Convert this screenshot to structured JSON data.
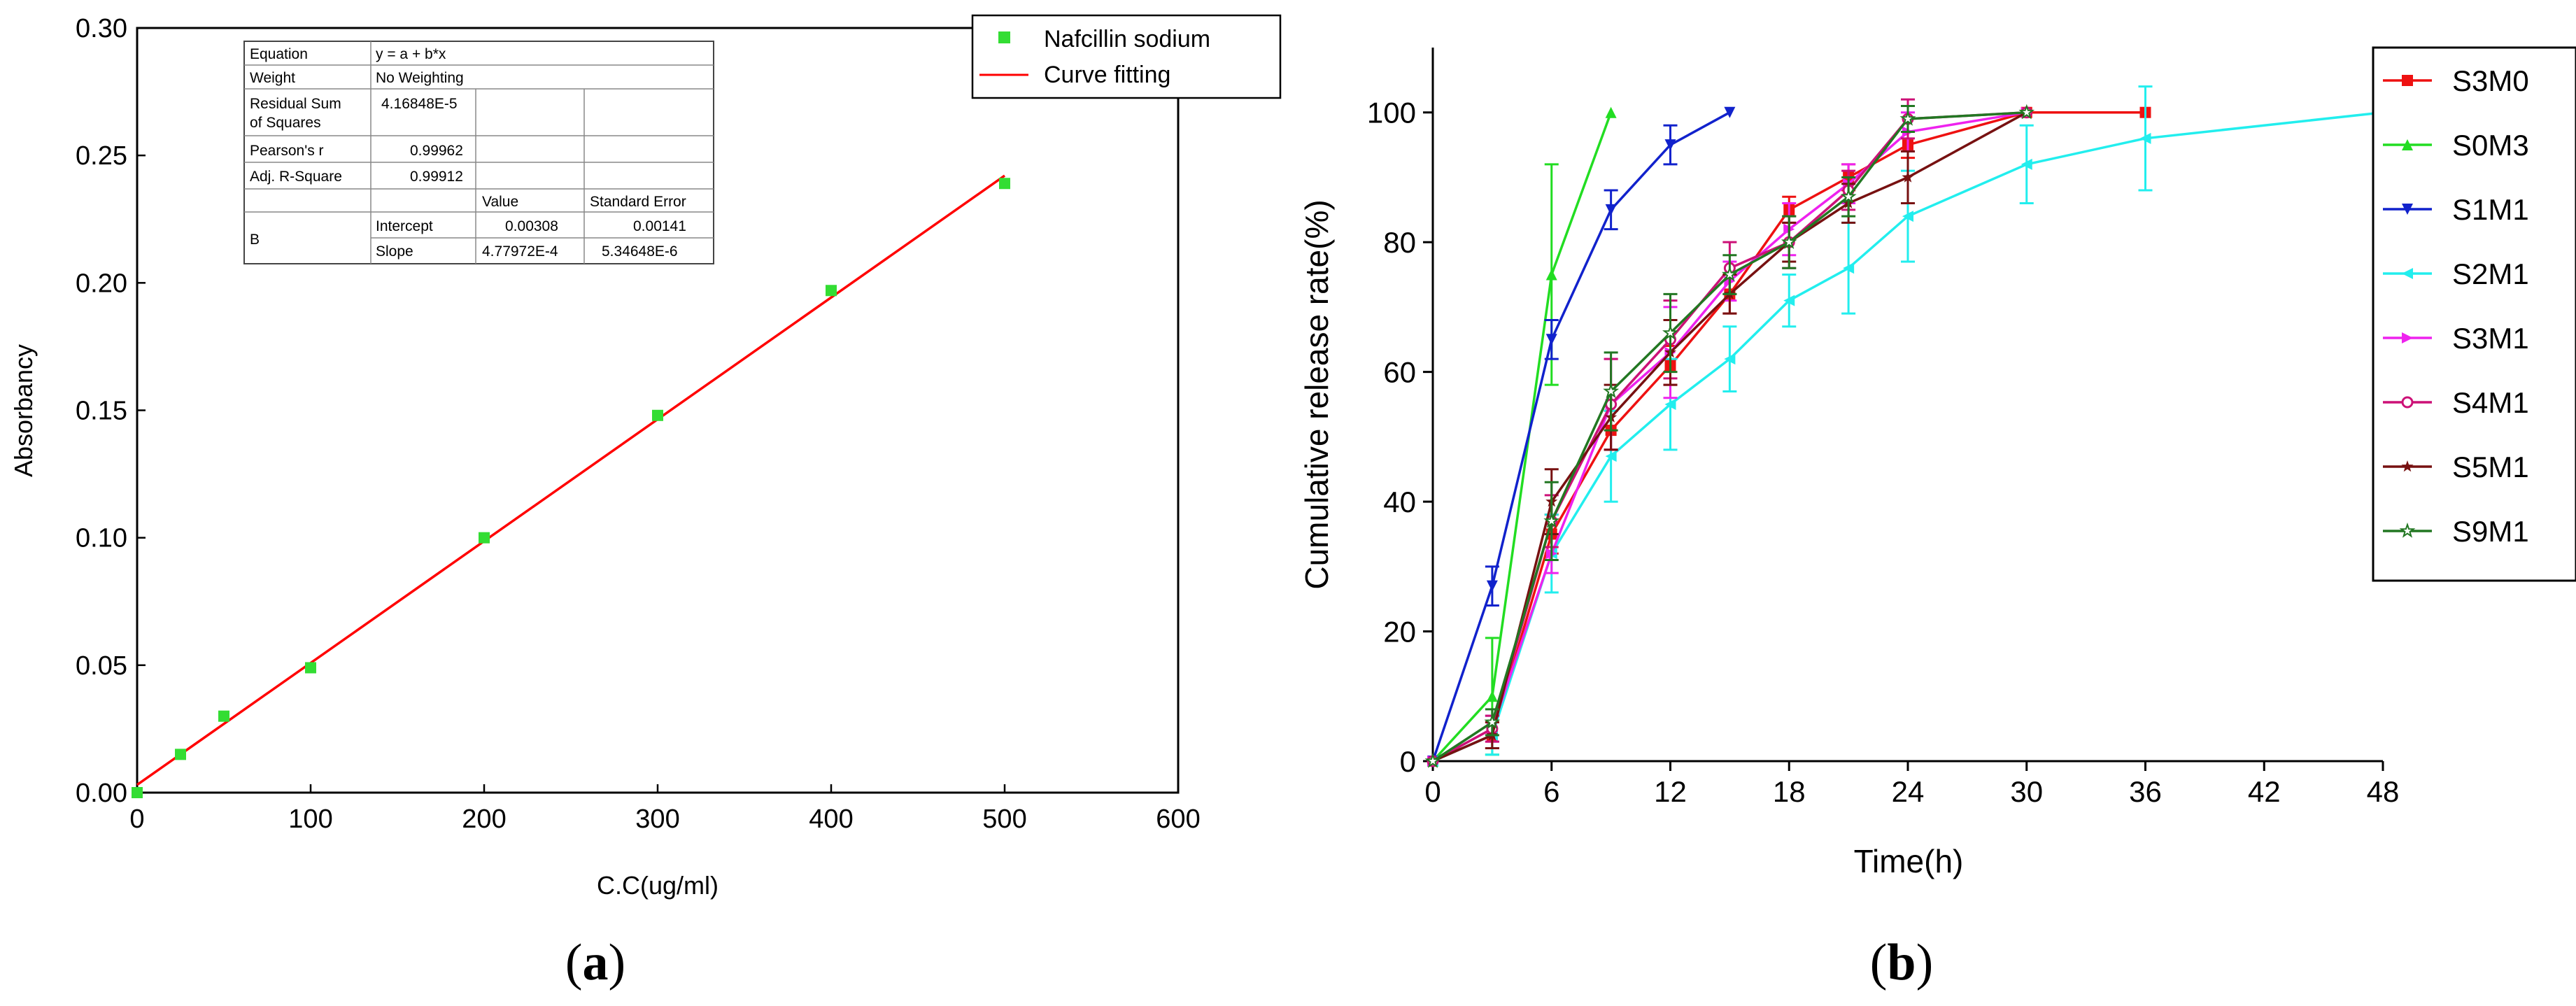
{
  "chart_data": [
    {
      "panel": "(a)",
      "type": "scatter",
      "xlabel": "C.C(ug/ml)",
      "ylabel": "Absorbancy",
      "xlim": [
        0,
        600
      ],
      "ylim": [
        0,
        0.3
      ],
      "xticks": [
        "0",
        "100",
        "200",
        "300",
        "400",
        "500",
        "600"
      ],
      "yticks": [
        "0.00",
        "0.05",
        "0.10",
        "0.15",
        "0.20",
        "0.25",
        "0.30"
      ],
      "series": [
        {
          "name": "Nafcillin sodium",
          "kind": "points",
          "color": "#33dd33",
          "x": [
            0,
            25,
            50,
            100,
            200,
            300,
            400,
            500
          ],
          "y": [
            0.0,
            0.015,
            0.03,
            0.049,
            0.1,
            0.148,
            0.197,
            0.239
          ]
        },
        {
          "name": "Curve fitting",
          "kind": "line",
          "color": "#ff0000",
          "intercept": 0.00308,
          "slope": 0.000477972,
          "x_range": [
            0,
            500
          ]
        }
      ],
      "legend": {
        "position": "top-right",
        "items": [
          "Nafcillin sodium",
          "Curve fitting"
        ]
      },
      "stats_table": [
        [
          "Equation",
          "y = a + b*x",
          "",
          ""
        ],
        [
          "Weight",
          "No Weighting",
          "",
          ""
        ],
        [
          "Residual Sum of Squares",
          "4.16848E-5",
          "",
          ""
        ],
        [
          "Pearson's r",
          "0.99962",
          "",
          ""
        ],
        [
          "Adj. R-Square",
          "0.99912",
          "",
          ""
        ],
        [
          "",
          "",
          "Value",
          "Standard Error"
        ],
        [
          "B",
          "Intercept",
          "0.00308",
          "0.00141"
        ],
        [
          "B",
          "Slope",
          "4.77972E-4",
          "5.34648E-6"
        ]
      ],
      "stats": {
        "equation_label": "Equation",
        "equation": "y = a + b*x",
        "weight_label": "Weight",
        "weight": "No Weighting",
        "rss_label_1": "Residual Sum",
        "rss_label_2": "of Squares",
        "rss": "4.16848E-5",
        "pearson_label": "Pearson's r",
        "pearson": "0.99962",
        "adjr_label": "Adj. R-Square",
        "adjr": "0.99912",
        "value_header": "Value",
        "stderr_header": "Standard Error",
        "b_label": "B",
        "intercept_label": "Intercept",
        "intercept_value": "0.00308",
        "intercept_err": "0.00141",
        "slope_label": "Slope",
        "slope_value": "4.77972E-4",
        "slope_err": "5.34648E-6"
      }
    },
    {
      "panel": "(b)",
      "type": "line",
      "xlabel": "Time(h)",
      "ylabel": "Cumulative release rate(%)",
      "xlim": [
        0,
        48
      ],
      "ylim": [
        0,
        110
      ],
      "xticks": [
        0,
        6,
        12,
        18,
        24,
        30,
        36,
        42,
        48
      ],
      "yticks": [
        0,
        20,
        40,
        60,
        80,
        100
      ],
      "series": [
        {
          "name": "S3M0",
          "color": "#ee1111",
          "marker": "square",
          "x": [
            0,
            3,
            6,
            9,
            12,
            15,
            18,
            21,
            24,
            30,
            36
          ],
          "y": [
            0,
            4,
            35,
            51,
            61,
            72,
            85,
            90,
            95,
            100,
            100
          ],
          "err": [
            0,
            2,
            3,
            3,
            3,
            3,
            2,
            2,
            2,
            0,
            0
          ]
        },
        {
          "name": "S0M3",
          "color": "#22dd22",
          "marker": "triangle-up",
          "x": [
            0,
            3,
            6,
            9
          ],
          "y": [
            0,
            10,
            75,
            100
          ],
          "err": [
            0,
            9,
            17,
            0
          ]
        },
        {
          "name": "S1M1",
          "color": "#1122cc",
          "marker": "triangle-down",
          "x": [
            0,
            3,
            6,
            9,
            12,
            15
          ],
          "y": [
            0,
            27,
            65,
            85,
            95,
            100
          ],
          "err": [
            0,
            3,
            3,
            3,
            3,
            0
          ]
        },
        {
          "name": "S2M1",
          "color": "#22eeee",
          "marker": "triangle-left",
          "x": [
            0,
            3,
            6,
            9,
            12,
            15,
            18,
            21,
            24,
            30,
            36,
            48
          ],
          "y": [
            0,
            4,
            32,
            47,
            55,
            62,
            71,
            76,
            84,
            92,
            96,
            100
          ],
          "err": [
            0,
            3,
            6,
            7,
            7,
            5,
            4,
            7,
            7,
            6,
            8,
            0
          ]
        },
        {
          "name": "S3M1",
          "color": "#ee22ee",
          "marker": "triangle-right",
          "x": [
            0,
            3,
            6,
            9,
            12,
            15,
            18,
            21,
            24,
            30
          ],
          "y": [
            0,
            5,
            32,
            55,
            63,
            74,
            82,
            89,
            97,
            100
          ],
          "err": [
            0,
            2,
            3,
            7,
            7,
            3,
            4,
            3,
            3,
            0
          ]
        },
        {
          "name": "S4M1",
          "color": "#cc1177",
          "marker": "circle",
          "x": [
            0,
            3,
            6,
            9,
            12,
            15,
            18,
            21,
            24,
            30
          ],
          "y": [
            0,
            5,
            37,
            55,
            65,
            76,
            80,
            88,
            99,
            100
          ],
          "err": [
            0,
            2,
            4,
            7,
            6,
            4,
            4,
            3,
            3,
            0
          ]
        },
        {
          "name": "S5M1",
          "color": "#771111",
          "marker": "star",
          "x": [
            0,
            3,
            6,
            9,
            12,
            15,
            18,
            21,
            24,
            30
          ],
          "y": [
            0,
            4,
            40,
            53,
            63,
            72,
            80,
            86,
            90,
            100
          ],
          "err": [
            0,
            2,
            5,
            5,
            5,
            3,
            3,
            3,
            4,
            0
          ]
        },
        {
          "name": "S9M1",
          "color": "#227722",
          "marker": "star-open",
          "x": [
            0,
            3,
            6,
            9,
            12,
            15,
            18,
            21,
            24,
            30
          ],
          "y": [
            0,
            6,
            37,
            57,
            66,
            75,
            80,
            87,
            99,
            100
          ],
          "err": [
            0,
            2,
            6,
            6,
            6,
            3,
            4,
            3,
            2,
            0
          ]
        }
      ],
      "legend": {
        "position": "top-right",
        "items": [
          "S3M0",
          "S0M3",
          "S1M1",
          "S2M1",
          "S3M1",
          "S4M1",
          "S5M1",
          "S9M1"
        ]
      }
    }
  ]
}
